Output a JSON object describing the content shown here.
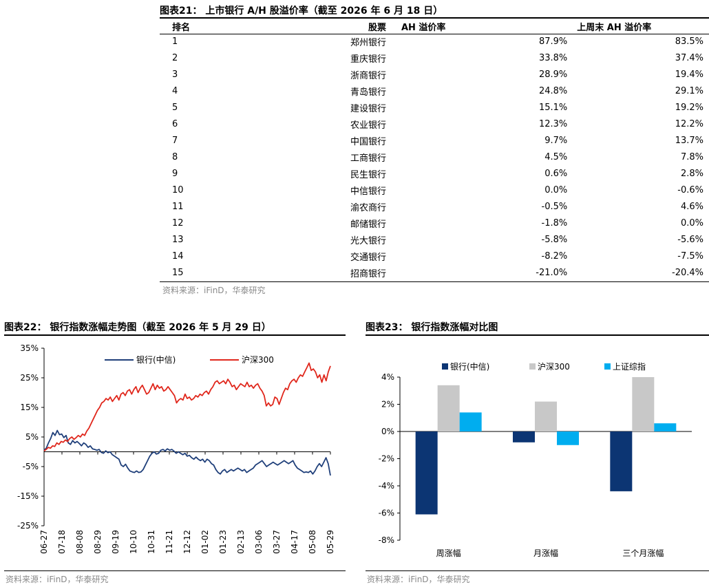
{
  "fig21": {
    "title": "图表21： 上市银行 A/H 股溢价率（截至 2026 年 6 月 18 日）",
    "headers": [
      "排名",
      "股票",
      "AH 溢价率",
      "上周末 AH 溢价率"
    ],
    "rows": [
      [
        "1",
        "郑州银行",
        "87.9%",
        "83.5%"
      ],
      [
        "2",
        "重庆银行",
        "33.8%",
        "37.4%"
      ],
      [
        "3",
        "浙商银行",
        "28.9%",
        "19.4%"
      ],
      [
        "4",
        "青岛银行",
        "24.8%",
        "29.1%"
      ],
      [
        "5",
        "建设银行",
        "15.1%",
        "19.2%"
      ],
      [
        "6",
        "农业银行",
        "12.3%",
        "12.2%"
      ],
      [
        "7",
        "中国银行",
        "9.7%",
        "13.7%"
      ],
      [
        "8",
        "工商银行",
        "4.5%",
        "7.8%"
      ],
      [
        "9",
        "民生银行",
        "0.6%",
        "2.8%"
      ],
      [
        "10",
        "中信银行",
        "0.0%",
        "-0.6%"
      ],
      [
        "11",
        "渝农商行",
        "-0.5%",
        "4.6%"
      ],
      [
        "12",
        "邮储银行",
        "-1.8%",
        "0.0%"
      ],
      [
        "13",
        "光大银行",
        "-5.8%",
        "-5.6%"
      ],
      [
        "14",
        "交通银行",
        "-8.2%",
        "-7.5%"
      ],
      [
        "15",
        "招商银行",
        "-21.0%",
        "-20.4%"
      ]
    ],
    "source": "资料来源：iFinD，华泰研究"
  },
  "fig22": {
    "title": "图表22： 银行指数涨幅走势图（截至 2026 年 5 月 29 日）",
    "source": "资料来源：iFinD，华泰研究"
  },
  "fig23": {
    "title": "图表23： 银行指数涨幅对比图",
    "source": "资料来源：iFinD，华泰研究"
  },
  "colors": {
    "bank": "#1f3f7a",
    "csi300": "#e0261b",
    "bar_bank": "#0c3573",
    "bar_csi300": "#c8c8c8",
    "bar_sse": "#00adef"
  },
  "chart_data": [
    {
      "type": "line",
      "title": "",
      "ylim": [
        -25,
        35
      ],
      "yticks": [
        35,
        25,
        15,
        5,
        -5,
        -15,
        -25
      ],
      "ytick_labels": [
        "35%",
        "25%",
        "15%",
        "5%",
        "-5%",
        "-15%",
        "-25%"
      ],
      "x_tick_labels": [
        "06-27",
        "07-18",
        "08-08",
        "08-29",
        "09-19",
        "10-10",
        "10-31",
        "11-21",
        "12-12",
        "01-02",
        "01-23",
        "02-13",
        "03-06",
        "03-27",
        "04-17",
        "05-08",
        "05-29"
      ],
      "legend": "top",
      "series": [
        {
          "name": "银行(中信)",
          "color": "#1f3f7a",
          "values": [
            0.5,
            1.2,
            3.0,
            4.5,
            6.5,
            5.5,
            7.2,
            5.8,
            6.0,
            4.8,
            5.5,
            3.0,
            2.5,
            3.8,
            3.0,
            3.5,
            2.8,
            2.0,
            3.0,
            2.5,
            1.5,
            2.0,
            1.0,
            0.8,
            0.5,
            0.8,
            -0.2,
            -0.5,
            0.3,
            -0.3,
            0.0,
            -1.0,
            -1.5,
            -2.0,
            -2.5,
            -4.5,
            -5.0,
            -4.2,
            -5.5,
            -6.5,
            -6.8,
            -7.0,
            -6.5,
            -7.0,
            -6.8,
            -6.0,
            -4.5,
            -3.0,
            -1.5,
            -0.5,
            0.0,
            -0.8,
            -0.5,
            0.5,
            0.8,
            0.3,
            1.0,
            0.5,
            0.8,
            0.2,
            -0.5,
            0.0,
            -0.5,
            -1.0,
            -0.5,
            -1.5,
            -1.2,
            -2.0,
            -2.5,
            -1.8,
            -2.5,
            -3.0,
            -2.5,
            -3.5,
            -2.5,
            -3.0,
            -4.0,
            -4.5,
            -6.0,
            -7.0,
            -7.5,
            -6.5,
            -6.0,
            -7.0,
            -6.5,
            -6.0,
            -6.5,
            -6.0,
            -5.5,
            -6.0,
            -6.5,
            -6.0,
            -7.0,
            -6.5,
            -6.0,
            -5.5,
            -4.5,
            -4.0,
            -3.5,
            -3.0,
            -4.0,
            -5.0,
            -4.5,
            -4.0,
            -3.5,
            -4.0,
            -4.5,
            -4.0,
            -3.5,
            -3.0,
            -3.5,
            -4.0,
            -3.5,
            -3.0,
            -4.5,
            -5.5,
            -6.0,
            -6.5,
            -7.0,
            -6.8,
            -7.0,
            -6.5,
            -7.5,
            -6.5,
            -5.0,
            -4.0,
            -5.0,
            -3.5,
            -2.0,
            -4.0,
            -8.0
          ]
        },
        {
          "name": "沪深300",
          "color": "#e0261b",
          "values": [
            0.3,
            0.8,
            1.5,
            1.2,
            2.0,
            1.8,
            3.0,
            2.5,
            3.5,
            3.2,
            4.0,
            3.5,
            4.5,
            5.0,
            4.2,
            4.8,
            5.5,
            5.0,
            6.0,
            5.5,
            7.0,
            8.0,
            9.5,
            11.0,
            12.5,
            14.0,
            15.0,
            16.5,
            17.0,
            18.0,
            17.5,
            18.5,
            17.0,
            18.0,
            19.0,
            17.5,
            19.5,
            20.0,
            19.0,
            20.5,
            21.0,
            19.5,
            21.0,
            22.0,
            20.0,
            21.5,
            22.5,
            21.0,
            19.5,
            20.0,
            21.5,
            23.0,
            21.0,
            22.5,
            21.5,
            22.0,
            20.5,
            21.0,
            22.0,
            21.0,
            20.0,
            19.0,
            16.5,
            17.5,
            18.0,
            17.5,
            19.5,
            18.0,
            18.5,
            17.5,
            18.0,
            19.0,
            18.5,
            19.5,
            19.0,
            20.0,
            20.5,
            19.5,
            21.0,
            22.0,
            23.5,
            24.0,
            23.0,
            23.5,
            24.0,
            23.0,
            24.5,
            23.5,
            22.0,
            22.5,
            21.0,
            22.0,
            23.0,
            22.5,
            22.0,
            23.5,
            22.0,
            22.5,
            21.5,
            22.5,
            23.0,
            21.5,
            20.5,
            19.0,
            15.5,
            16.5,
            15.5,
            16.0,
            18.5,
            18.0,
            16.0,
            18.0,
            20.0,
            21.5,
            21.0,
            23.0,
            24.0,
            24.5,
            23.5,
            25.0,
            26.0,
            25.5,
            27.0,
            28.5,
            30.0,
            27.5,
            28.0,
            27.0,
            25.0,
            26.0,
            23.5,
            26.0,
            24.0,
            27.0,
            29.0
          ]
        }
      ]
    },
    {
      "type": "bar",
      "title": "",
      "categories": [
        "周涨幅",
        "月涨幅",
        "三个月涨幅"
      ],
      "ylim": [
        -8,
        4
      ],
      "yticks": [
        4,
        2,
        0,
        -2,
        -4,
        -6,
        -8
      ],
      "ytick_labels": [
        "4%",
        "2%",
        "0%",
        "-2%",
        "-4%",
        "-6%",
        "-8%"
      ],
      "legend": "top",
      "series": [
        {
          "name": "银行(中信)",
          "color": "#0c3573",
          "values": [
            -6.1,
            -0.8,
            -4.4
          ]
        },
        {
          "name": "沪深300",
          "color": "#c8c8c8",
          "values": [
            3.4,
            2.2,
            4.0
          ]
        },
        {
          "name": "上证综指",
          "color": "#00adef",
          "values": [
            1.4,
            -1.0,
            0.6
          ]
        }
      ]
    }
  ]
}
